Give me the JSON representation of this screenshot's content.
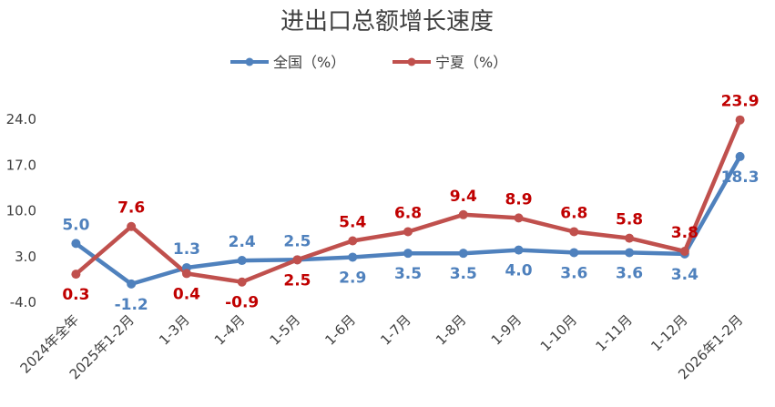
{
  "chart_data": {
    "type": "line",
    "title": "进出口总额增长速度",
    "categories": [
      "2024年全年",
      "2025年1-2月",
      "1-3月",
      "1-4月",
      "1-5月",
      "1-6月",
      "1-7月",
      "1-8月",
      "1-9月",
      "1-10月",
      "1-11月",
      "1-12月",
      "2026年1-2月"
    ],
    "series": [
      {
        "name": "全国（%）",
        "color": "#4f81bd",
        "values": [
          5.0,
          -1.2,
          1.3,
          2.4,
          2.5,
          2.9,
          3.5,
          3.5,
          4.0,
          3.6,
          3.6,
          3.4,
          18.3
        ],
        "labels": [
          "5.0",
          "-1.2",
          "1.3",
          "2.4",
          "2.5",
          "2.9",
          "3.5",
          "3.5",
          "4.0",
          "3.6",
          "3.6",
          "3.4",
          "18.3"
        ]
      },
      {
        "name": "宁夏（%）",
        "color": "#c0504d",
        "values": [
          0.3,
          7.6,
          0.4,
          -0.9,
          2.5,
          5.4,
          6.8,
          9.4,
          8.9,
          6.8,
          5.8,
          3.8,
          23.9
        ],
        "labels": [
          "0.3",
          "7.6",
          "0.4",
          "-0.9",
          "2.5",
          "5.4",
          "6.8",
          "9.4",
          "8.9",
          "6.8",
          "5.8",
          "3.8",
          "23.9"
        ]
      }
    ],
    "yticks": [
      "24.0",
      "17.0",
      "10.0",
      "3.0",
      "-4.0"
    ],
    "ylim": [
      -4.0,
      24.0
    ],
    "legend_position": "top-center",
    "grid": false,
    "label_color_blue": "#4f81bd",
    "label_color_red": "#c00000"
  }
}
